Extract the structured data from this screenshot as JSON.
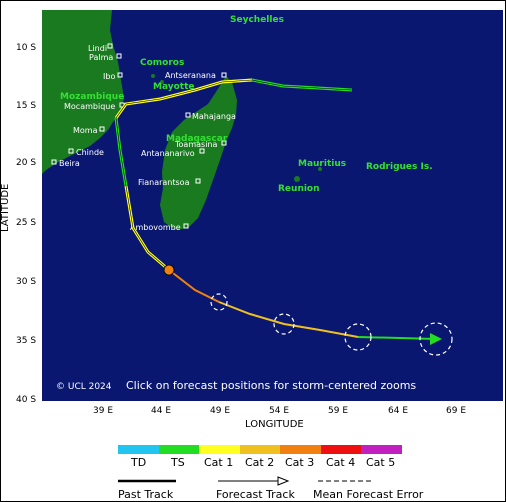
{
  "map": {
    "latitude_axis": {
      "label": "LATITUDE",
      "ticks": [
        "10 S",
        "15 S",
        "20 S",
        "25 S",
        "30 S",
        "35 S",
        "40 S"
      ]
    },
    "longitude_axis": {
      "label": "LONGITUDE",
      "ticks": [
        "39 E",
        "44 E",
        "49 E",
        "54 E",
        "59 E",
        "64 E",
        "69 E"
      ]
    },
    "places": {
      "seychelles": "Seychelles",
      "lindi": "Lindi",
      "palma": "Palma",
      "ibo": "Ibo",
      "comoros": "Comoros",
      "antseranana": "Antseranana",
      "mayotte": "Mayotte",
      "mozambique": "Mozambique",
      "mocambique": "Mocambique",
      "mahajanga": "Mahajanga",
      "madagascar": "Madagascar",
      "toamasina": "Toamasina",
      "antananarivo": "Antananarivo",
      "moma": "Moma",
      "chinde": "Chinde",
      "beira": "Beira",
      "mauritius": "Mauritius",
      "rodrigues": "Rodrigues Is.",
      "reunion": "Reunion",
      "fianarantsoa": "Fianarantsoa",
      "ambovombe": "Ambovombe"
    },
    "copyright": "© UCL 2024",
    "click_hint": "Click on forecast positions for storm-centered zooms",
    "colors": {
      "ocean": "#0a1770",
      "land": "#1a7a1f",
      "country_label": "#33e033",
      "city_label": "#ffffff"
    }
  },
  "legend": {
    "categories": [
      {
        "label": "TD",
        "color": "#22c4f0"
      },
      {
        "label": "TS",
        "color": "#22dd22"
      },
      {
        "label": "Cat 1",
        "color": "#ffff22"
      },
      {
        "label": "Cat 2",
        "color": "#f0c020"
      },
      {
        "label": "Cat 3",
        "color": "#f08010"
      },
      {
        "label": "Cat 4",
        "color": "#ee1010"
      },
      {
        "label": "Cat 5",
        "color": "#c020c0"
      }
    ],
    "past_track": "Past Track",
    "forecast_track": "Forecast Track",
    "mean_forecast_error": "Mean Forecast Error"
  }
}
